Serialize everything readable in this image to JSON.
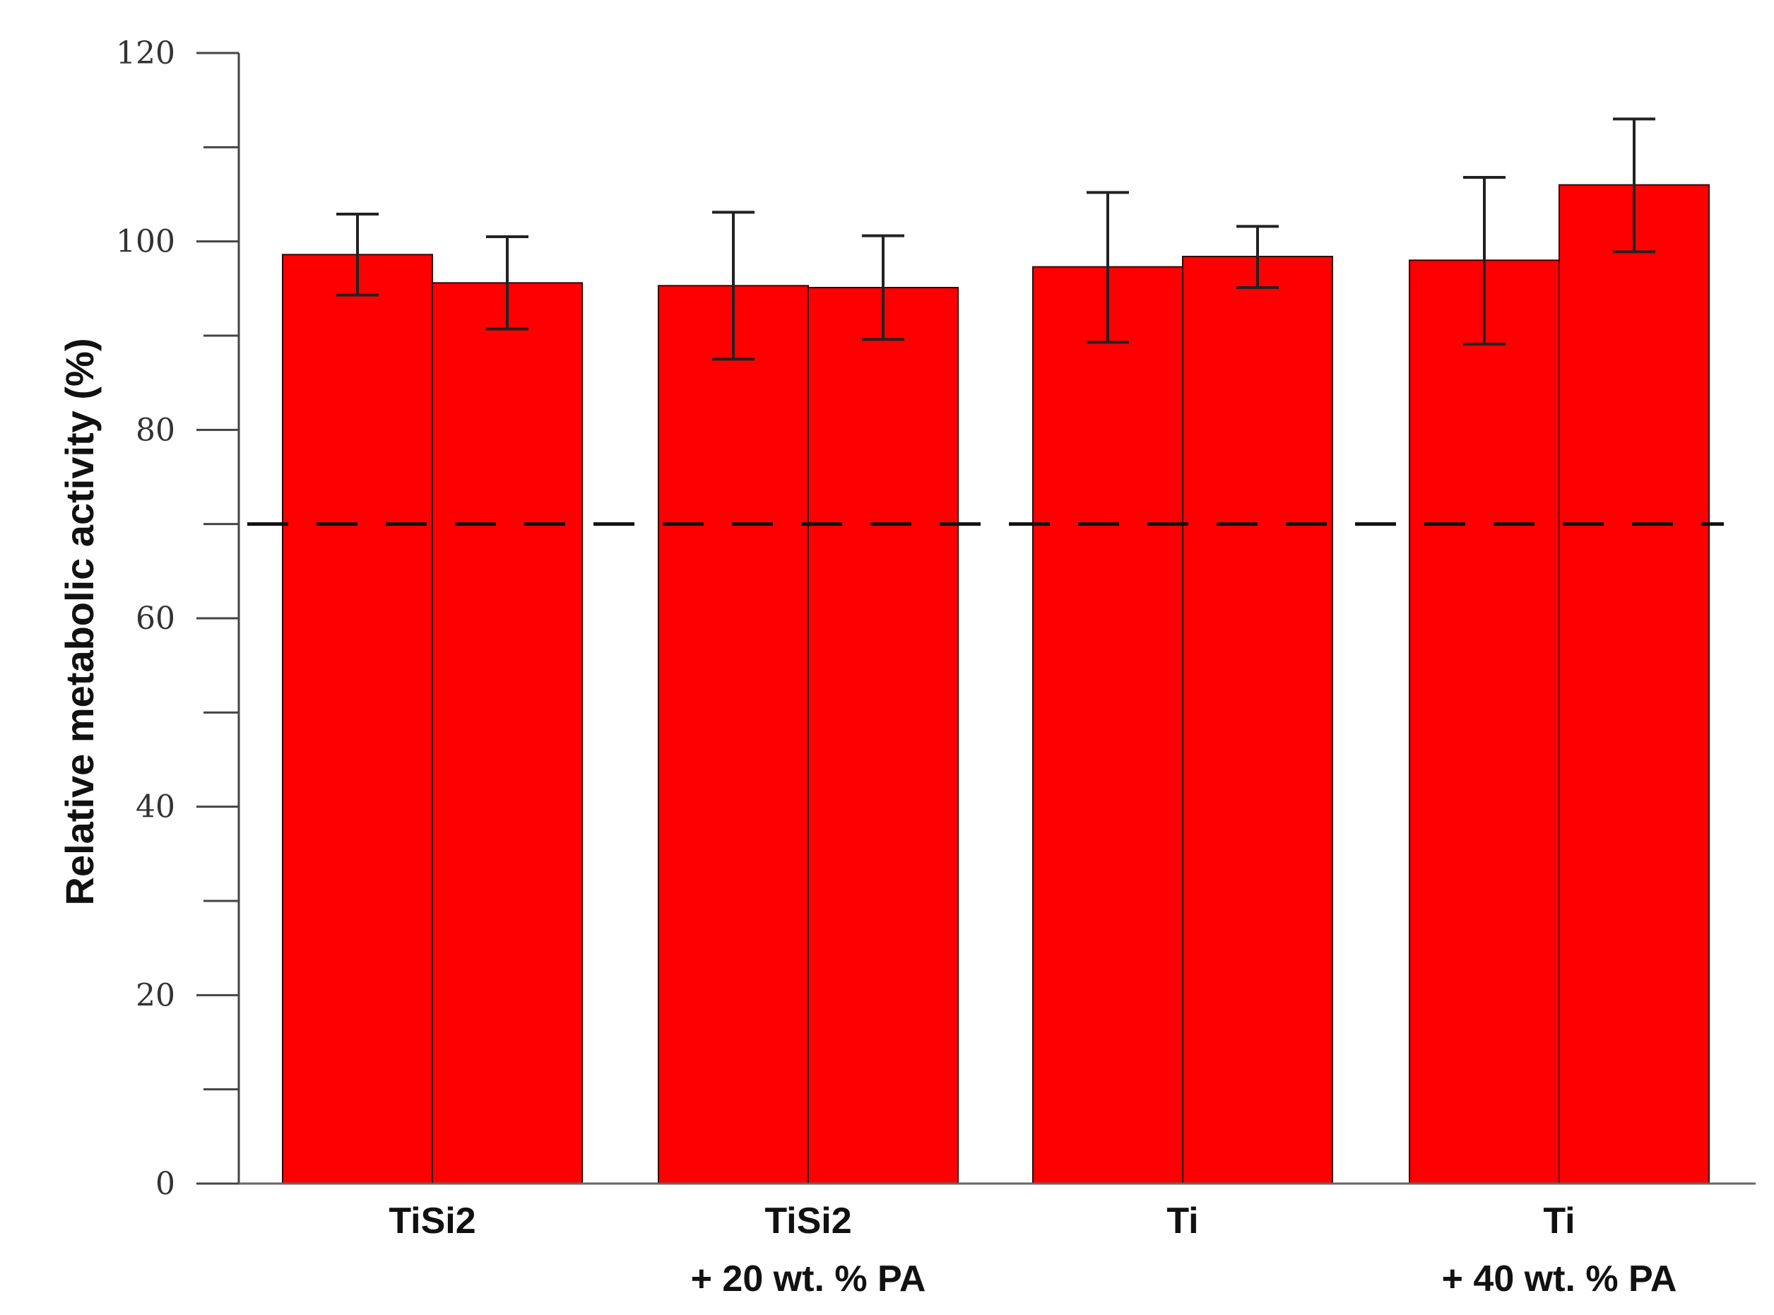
{
  "chart_data": {
    "type": "bar",
    "title": "",
    "xlabel": "",
    "ylabel": "Relative metabolic activity (%)",
    "ylim": [
      0,
      120
    ],
    "yticks": [
      0,
      20,
      40,
      60,
      80,
      100,
      120
    ],
    "grid": false,
    "legend": "none",
    "bar_color": "#ff0000",
    "groups": [
      {
        "label_lines": [
          "TiSi2"
        ],
        "bars": [
          {
            "value": 98.6,
            "err_low": 94.3,
            "err_high": 102.9
          },
          {
            "value": 95.6,
            "err_low": 90.7,
            "err_high": 100.5
          }
        ]
      },
      {
        "label_lines": [
          "TiSi2",
          "+ 20 wt. % PA"
        ],
        "bars": [
          {
            "value": 95.3,
            "err_low": 87.5,
            "err_high": 103.1
          },
          {
            "value": 95.1,
            "err_low": 89.6,
            "err_high": 100.6
          }
        ]
      },
      {
        "label_lines": [
          "Ti"
        ],
        "bars": [
          {
            "value": 97.3,
            "err_low": 89.3,
            "err_high": 105.2
          },
          {
            "value": 98.4,
            "err_low": 95.1,
            "err_high": 101.6
          }
        ]
      },
      {
        "label_lines": [
          "Ti",
          "+ 40 wt. % PA"
        ],
        "bars": [
          {
            "value": 98.0,
            "err_low": 89.1,
            "err_high": 106.8
          },
          {
            "value": 106.0,
            "err_low": 98.9,
            "err_high": 113.0
          }
        ]
      }
    ],
    "reference_line": {
      "value": 70,
      "style": "dashed"
    }
  }
}
